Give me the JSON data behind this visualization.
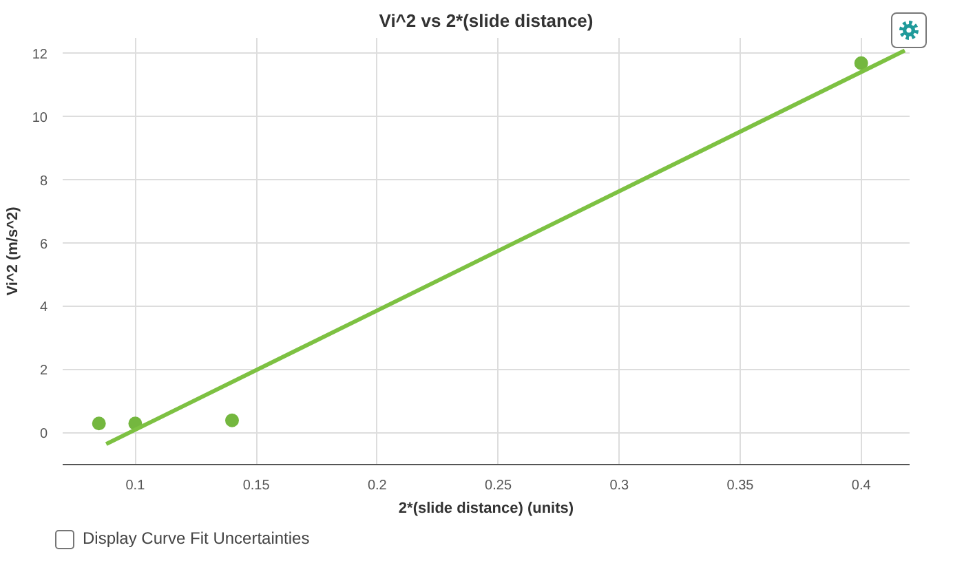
{
  "chart_data": {
    "type": "scatter",
    "title": "Vi^2 vs 2*(slide distance)",
    "xlabel": "2*(slide distance) (units)",
    "ylabel": "Vi^2 (m/s^2)",
    "annotations": [
      "Display Curve Fit Uncertainties"
    ],
    "x": [
      0.085,
      0.1,
      0.14,
      0.4
    ],
    "series": [
      {
        "color": "#74b73f",
        "values": [
          0.3,
          0.3,
          0.4,
          11.7
        ]
      },
      {
        "type": "line",
        "color": "#7dc142",
        "marker": "none",
        "x": [
          0.088,
          0.418
        ],
        "values": [
          -0.35,
          12.1
        ]
      }
    ],
    "xlim": [
      0.07,
      0.42
    ],
    "ylim": [
      -1,
      12.5
    ],
    "xticks": [
      0.1,
      0.15,
      0.2,
      0.25,
      0.3,
      0.35,
      0.4
    ],
    "yticks": [
      0,
      2,
      4,
      6,
      8,
      10,
      12
    ],
    "grid": true,
    "marker": "circle"
  }
}
